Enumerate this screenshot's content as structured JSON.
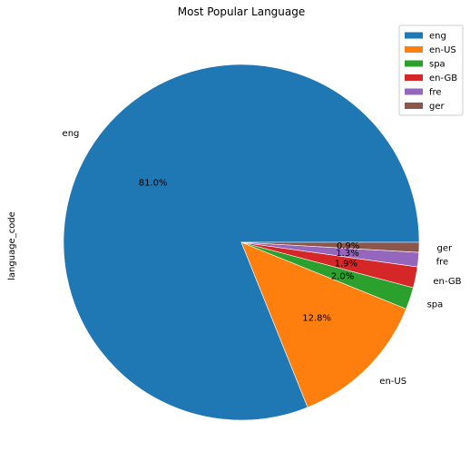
{
  "chart_data": {
    "type": "pie",
    "title": "Most Popular Language",
    "ylabel": "language_code",
    "categories": [
      "eng",
      "en-US",
      "spa",
      "en-GB",
      "fre",
      "ger"
    ],
    "values": [
      81.0,
      12.8,
      2.0,
      1.9,
      1.3,
      0.9
    ],
    "percent_labels": [
      "81.0%",
      "12.8%",
      "2.0%",
      "1.9%",
      "1.3%",
      "0.9%"
    ],
    "colors": [
      "#1f77b4",
      "#ff7f0e",
      "#2ca02c",
      "#d62728",
      "#9467bd",
      "#8c564b"
    ],
    "start_angle": "0 degrees (3 o'clock)",
    "direction": "counterclockwise",
    "legend": {
      "placement": "top-right",
      "entries": [
        "eng",
        "en-US",
        "spa",
        "en-GB",
        "fre",
        "ger"
      ]
    }
  }
}
